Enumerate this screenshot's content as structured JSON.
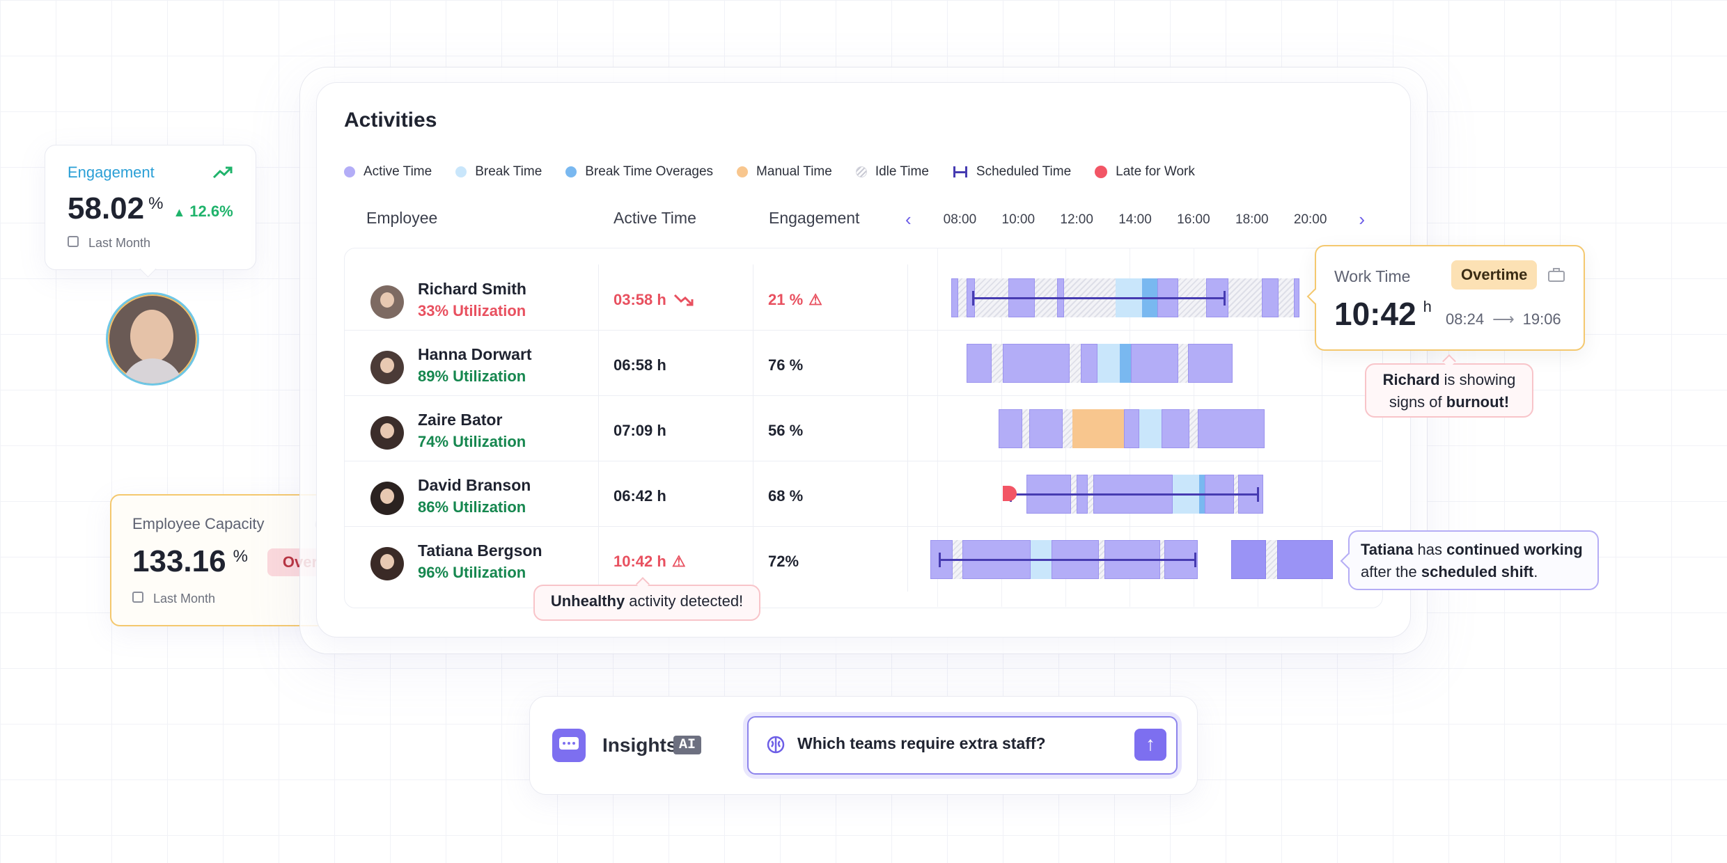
{
  "engagement_card": {
    "title": "Engagement",
    "value": "58.02",
    "unit": "%",
    "change": "12.6%",
    "period": "Last Month"
  },
  "capacity_card": {
    "title": "Employee Capacity",
    "value": "133.16",
    "unit": "%",
    "status": "Over",
    "period": "Last Month"
  },
  "activities": {
    "title": "Activities",
    "legend": [
      {
        "label": "Active Time",
        "color": "#b3adf7"
      },
      {
        "label": "Break Time",
        "color": "#c9e6fb"
      },
      {
        "label": "Break Time Overages",
        "color": "#79b8f0"
      },
      {
        "label": "Manual Time",
        "color": "#f8c68e"
      },
      {
        "label": "Idle Time",
        "color": "#dedfe8"
      },
      {
        "label": "Scheduled Time",
        "color": "#463bb1"
      },
      {
        "label": "Late for Work",
        "color": "#f25565"
      }
    ],
    "columns": {
      "employee": "Employee",
      "active_time": "Active Time",
      "engagement": "Engagement"
    },
    "times": [
      "08:00",
      "10:00",
      "12:00",
      "14:00",
      "16:00",
      "18:00",
      "20:00"
    ],
    "rows": [
      {
        "name": "Richard Smith",
        "utilization": "33% Utilization",
        "active_time": "03:58 h",
        "engagement": "21 %",
        "status": "bad"
      },
      {
        "name": "Hanna Dorwart",
        "utilization": "89% Utilization",
        "active_time": "06:58 h",
        "engagement": "76 %",
        "status": "good"
      },
      {
        "name": "Zaire Bator",
        "utilization": "74% Utilization",
        "active_time": "07:09 h",
        "engagement": "56 %",
        "status": "good"
      },
      {
        "name": "David Branson",
        "utilization": "86% Utilization",
        "active_time": "06:42 h",
        "engagement": "68 %",
        "status": "good"
      },
      {
        "name": "Tatiana Bergson",
        "utilization": "96% Utilization",
        "active_time": "10:42 h",
        "engagement": "72%",
        "status": "warn"
      }
    ]
  },
  "work_time_card": {
    "title": "Work Time",
    "badge": "Overtime",
    "value": "10:42",
    "unit": "h",
    "start": "08:24",
    "end": "19:06"
  },
  "callouts": {
    "richard_name": "Richard",
    "richard_mid": " is showing",
    "richard_line2_pre": "signs of ",
    "richard_bold": "burnout!",
    "tatiana_name": "Tatiana",
    "tatiana_mid": " has ",
    "tatiana_bold1": "continued working",
    "tatiana_line2_pre": "after the ",
    "tatiana_bold2": "scheduled shift",
    "tatiana_end": ".",
    "unhealthy_bold": "Unhealthy",
    "unhealthy_rest": " activity detected!"
  },
  "insights": {
    "label": "Insights",
    "tag": "AI",
    "query": "Which teams require extra staff?"
  }
}
